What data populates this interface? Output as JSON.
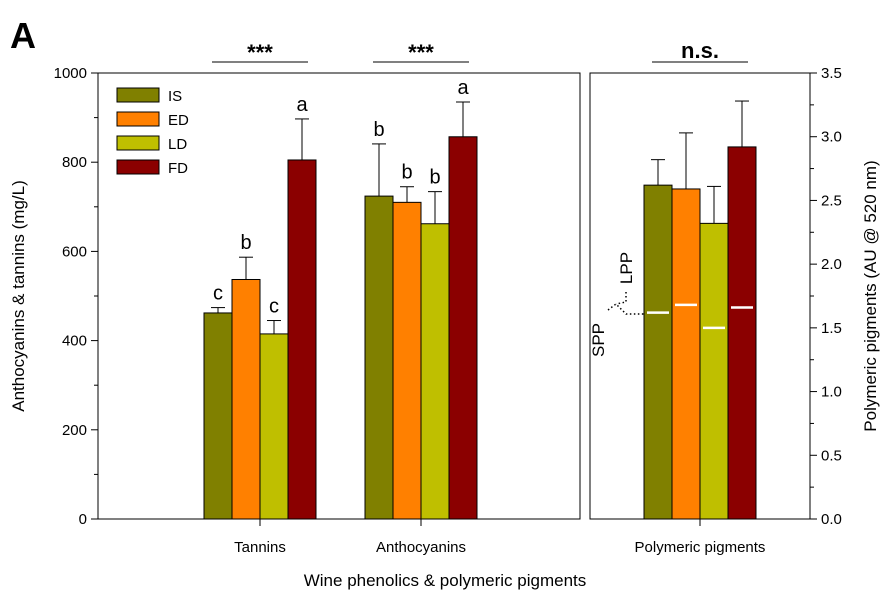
{
  "chart_data": {
    "type": "bar",
    "panel_label": "A",
    "xlabel": "Wine phenolics & polymeric pigments",
    "legend": {
      "placement": "top-left",
      "entries": [
        "IS",
        "ED",
        "LD",
        "FD"
      ]
    },
    "colors": {
      "IS": "#808000",
      "ED": "#ff8000",
      "LD": "#bfbf00",
      "FD": "#8b0000",
      "divider": "#ffffff"
    },
    "left_panel": {
      "ylabel": "Anthocyanins & tannins (mg/L)",
      "ylim": [
        0,
        1000
      ],
      "yticks": [
        "0",
        "200",
        "400",
        "600",
        "800",
        "1000"
      ],
      "categories": [
        "Tannins",
        "Anthocyanins"
      ],
      "series": [
        {
          "name": "IS",
          "values": [
            462,
            724
          ],
          "errors": [
            12,
            117
          ],
          "letters": [
            "c",
            "b"
          ]
        },
        {
          "name": "ED",
          "values": [
            537,
            710
          ],
          "errors": [
            50,
            35
          ],
          "letters": [
            "b",
            "b"
          ]
        },
        {
          "name": "LD",
          "values": [
            415,
            662
          ],
          "errors": [
            30,
            72
          ],
          "letters": [
            "c",
            "b"
          ]
        },
        {
          "name": "FD",
          "values": [
            805,
            857
          ],
          "errors": [
            92,
            78
          ],
          "letters": [
            "a",
            "a"
          ]
        }
      ],
      "significance": [
        "***",
        "***"
      ]
    },
    "right_panel": {
      "ylabel": "Polymeric pigments (AU @ 520 nm)",
      "ylim": [
        0,
        3.5
      ],
      "yticks": [
        "0.0",
        "0.5",
        "1.0",
        "1.5",
        "2.0",
        "2.5",
        "3.0",
        "3.5"
      ],
      "categories": [
        "Polymeric pigments"
      ],
      "series": [
        {
          "name": "IS",
          "values": [
            2.62
          ],
          "errors": [
            0.2
          ],
          "spp": [
            1.62
          ]
        },
        {
          "name": "ED",
          "values": [
            2.59
          ],
          "errors": [
            0.44
          ],
          "spp": [
            1.68
          ]
        },
        {
          "name": "LD",
          "values": [
            2.32
          ],
          "errors": [
            0.29
          ],
          "spp": [
            1.5
          ]
        },
        {
          "name": "FD",
          "values": [
            2.92
          ],
          "errors": [
            0.36
          ],
          "spp": [
            1.66
          ]
        }
      ],
      "significance": [
        "n.s."
      ],
      "annotations": {
        "upper": "LPP",
        "lower": "SPP"
      }
    }
  }
}
